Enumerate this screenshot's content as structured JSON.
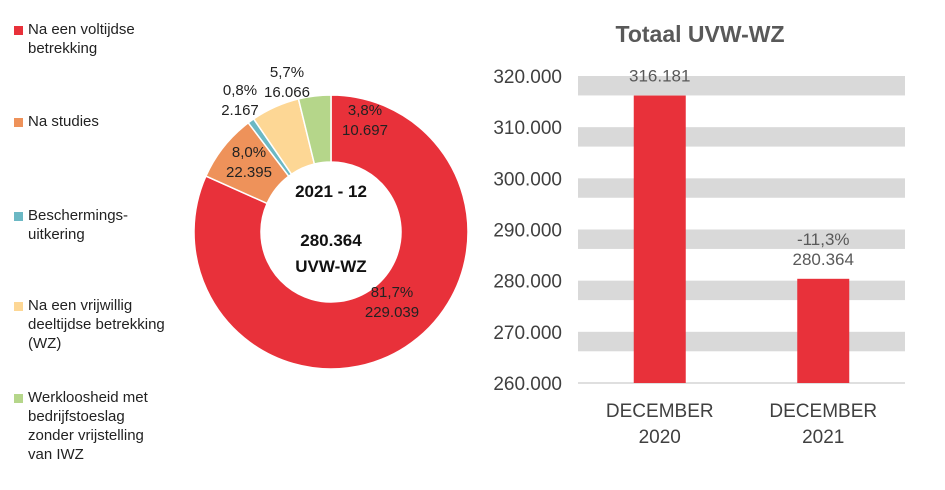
{
  "chart_data": [
    {
      "type": "pie",
      "center_label_1": "2021 - 12",
      "center_label_2": "280.364",
      "center_label_3": "UVW-WZ",
      "slices": [
        {
          "name": "Na een voltijdse\nbetrekking",
          "pct_label": "81,7%",
          "value_label": "229.039",
          "value": 229039,
          "color": "#e8313a"
        },
        {
          "name": "Na studies",
          "pct_label": "8,0%",
          "value_label": "22.395",
          "value": 22395,
          "color": "#ee925a"
        },
        {
          "name": "Beschermings-\nuitkering",
          "pct_label": "0,8%",
          "value_label": "2.167",
          "value": 2167,
          "color": "#6bb8c4"
        },
        {
          "name": "Na een vrijwillig\ndeeltijdse betrekking\n(WZ)",
          "pct_label": "5,7%",
          "value_label": "16.066",
          "value": 16066,
          "color": "#fdd795"
        },
        {
          "name": "Werkloosheid met\nbedrijfstoeslag\nzonder vrijstelling\nvan IWZ",
          "pct_label": "3,8%",
          "value_label": "10.697",
          "value": 10697,
          "color": "#b5d68a"
        }
      ]
    },
    {
      "type": "bar",
      "title": "Totaal UVW-WZ",
      "categories": [
        "DECEMBER\n2020",
        "DECEMBER\n2021"
      ],
      "values": [
        316181,
        280364
      ],
      "value_labels": [
        "316.181",
        "280.364"
      ],
      "change_label": "-11,3%",
      "ylim": [
        260000,
        320000
      ],
      "yticks": [
        260000,
        270000,
        280000,
        290000,
        300000,
        310000,
        320000
      ],
      "ytick_labels": [
        "260.000",
        "270.000",
        "280.000",
        "290.000",
        "300.000",
        "310.000",
        "320.000"
      ],
      "color": "#e8313a",
      "grid": true
    }
  ]
}
